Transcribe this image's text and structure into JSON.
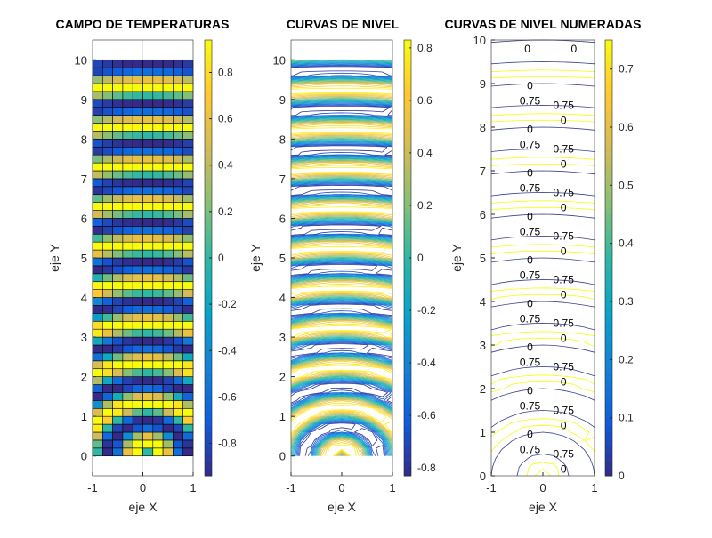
{
  "figure": {
    "background": "#ffffff"
  },
  "chart_data": [
    {
      "type": "heatmap",
      "title": "CAMPO DE TEMPERATURAS",
      "xlabel": "eje X",
      "ylabel": "eje Y",
      "grid_x": {
        "start": -1,
        "stop": 1,
        "step": 0.2
      },
      "grid_y": {
        "start": 0,
        "stop": 10,
        "step": 0.2
      },
      "field": "sin(2*pi*sqrt(x^2+y^2))",
      "xlim": [
        -1,
        1
      ],
      "ylim": [
        -0.5,
        10.5
      ],
      "xticks": [
        "-1",
        "0",
        "1"
      ],
      "yticks": [
        "0",
        "1",
        "2",
        "3",
        "4",
        "5",
        "6",
        "7",
        "8",
        "9",
        "10"
      ],
      "colormap": "parula",
      "clim": [
        -0.94,
        0.94
      ],
      "colorbar_ticks": [
        "-0.8",
        "-0.6",
        "-0.4",
        "-0.2",
        "0",
        "0.2",
        "0.4",
        "0.6",
        "0.8"
      ]
    },
    {
      "type": "contour",
      "title": "CURVAS DE NIVEL",
      "xlabel": "eje X",
      "ylabel": "eje Y",
      "levels": [
        -0.8,
        -0.7,
        -0.6,
        -0.5,
        -0.4,
        -0.3,
        -0.2,
        -0.1,
        0,
        0.1,
        0.2,
        0.3,
        0.4,
        0.5,
        0.6,
        0.7,
        0.8
      ],
      "xlim": [
        -1,
        1
      ],
      "ylim": [
        -0.5,
        10.5
      ],
      "xticks": [
        "-1",
        "0",
        "1"
      ],
      "yticks": [
        "0",
        "1",
        "2",
        "3",
        "4",
        "5",
        "6",
        "7",
        "8",
        "9",
        "10"
      ],
      "colormap": "parula",
      "clim": [
        -0.83,
        0.83
      ],
      "colorbar_ticks": [
        "-0.8",
        "-0.6",
        "-0.4",
        "-0.2",
        "0",
        "0.2",
        "0.4",
        "0.6",
        "0.8"
      ]
    },
    {
      "type": "contour",
      "title": "CURVAS DE NIVEL NUMERADAS",
      "xlabel": "eje X",
      "ylabel": "eje Y",
      "levels": [
        0,
        0.75
      ],
      "level_labels": [
        "0",
        "0.75"
      ],
      "xlim": [
        -1,
        1
      ],
      "ylim": [
        0,
        10
      ],
      "xticks": [
        "-1",
        "0",
        "1"
      ],
      "yticks": [
        "0",
        "1",
        "2",
        "3",
        "4",
        "5",
        "6",
        "7",
        "8",
        "9",
        "10"
      ],
      "colormap": "parula",
      "clim": [
        0,
        0.75
      ],
      "colorbar_ticks": [
        "0",
        "0.1",
        "0.2",
        "0.3",
        "0.4",
        "0.5",
        "0.6",
        "0.7"
      ]
    }
  ]
}
